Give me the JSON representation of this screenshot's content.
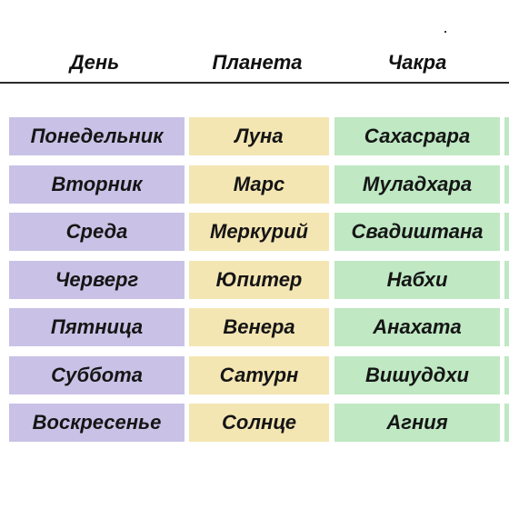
{
  "headers": {
    "day": "День",
    "planet": "Планета",
    "chakra": "Чакра"
  },
  "rows": [
    {
      "day": "Понедельник",
      "planet": "Луна",
      "chakra": "Сахасрара"
    },
    {
      "day": "Вторник",
      "planet": "Марс",
      "chakra": "Муладхара"
    },
    {
      "day": "Среда",
      "planet": "Меркурий",
      "chakra": "Свадиштана"
    },
    {
      "day": "Черверг",
      "planet": "Юпитер",
      "chakra": "Набхи"
    },
    {
      "day": "Пятница",
      "planet": "Венера",
      "chakra": "Анахата"
    },
    {
      "day": "Суббота",
      "planet": "Сатурн",
      "chakra": "Вишуддхи"
    },
    {
      "day": "Воскресенье",
      "planet": "Солнце",
      "chakra": "Агния"
    }
  ],
  "colors": {
    "day_bg": "#c9c2e6",
    "planet_bg": "#f4e6b3",
    "chakra_bg": "#bfe8c3",
    "text": "#151515"
  }
}
